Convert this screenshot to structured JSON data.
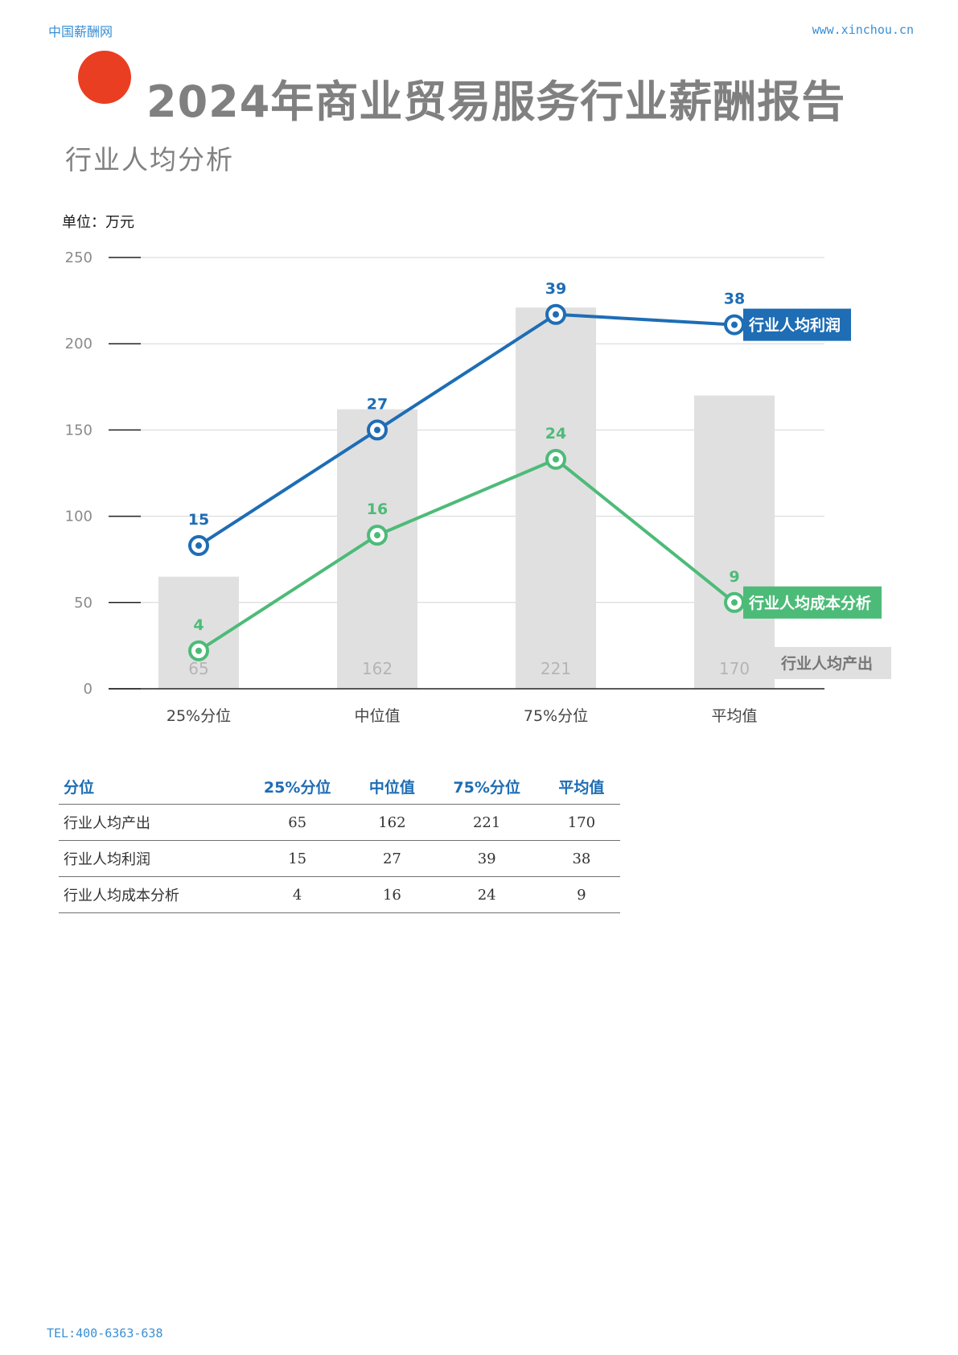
{
  "header": {
    "site_name": "中国薪酬网",
    "site_url": "www.xinchou.cn"
  },
  "page_title": "2024年商业贸易服务行业薪酬报告",
  "section_title": "行业人均分析",
  "unit_label": "单位：万元",
  "colors": {
    "accent_dot": "#ea3e22",
    "profit": "#1e6db5",
    "cost": "#4dbb78",
    "bar": "#e0e0e0",
    "header_text": "#3a8fd4",
    "title_text": "#808080"
  },
  "chart_data": {
    "type": "bar+line",
    "categories": [
      "25%分位",
      "中位值",
      "75%分位",
      "平均值"
    ],
    "ylim": [
      0,
      250
    ],
    "yticks": [
      0,
      50,
      100,
      150,
      200,
      250
    ],
    "grid": true,
    "bar_series": {
      "name": "行业人均产出",
      "values": [
        65,
        162,
        221,
        170
      ]
    },
    "line_series": [
      {
        "name": "行业人均利润",
        "values": [
          15,
          27,
          39,
          38
        ],
        "plot_positions": [
          83,
          150,
          217,
          211
        ],
        "color": "#1e6db5"
      },
      {
        "name": "行业人均成本分析",
        "values": [
          4,
          16,
          24,
          9
        ],
        "plot_positions": [
          22,
          89,
          133,
          50
        ],
        "color": "#4dbb78"
      }
    ]
  },
  "table": {
    "headers": [
      "分位",
      "25%分位",
      "中位值",
      "75%分位",
      "平均值"
    ],
    "rows": [
      {
        "label": "行业人均产出",
        "cells": [
          "65",
          "162",
          "221",
          "170"
        ]
      },
      {
        "label": "行业人均利润",
        "cells": [
          "15",
          "27",
          "39",
          "38"
        ]
      },
      {
        "label": "行业人均成本分析",
        "cells": [
          "4",
          "16",
          "24",
          "9"
        ]
      }
    ]
  },
  "footer": {
    "tel": "TEL:400-6363-638"
  }
}
